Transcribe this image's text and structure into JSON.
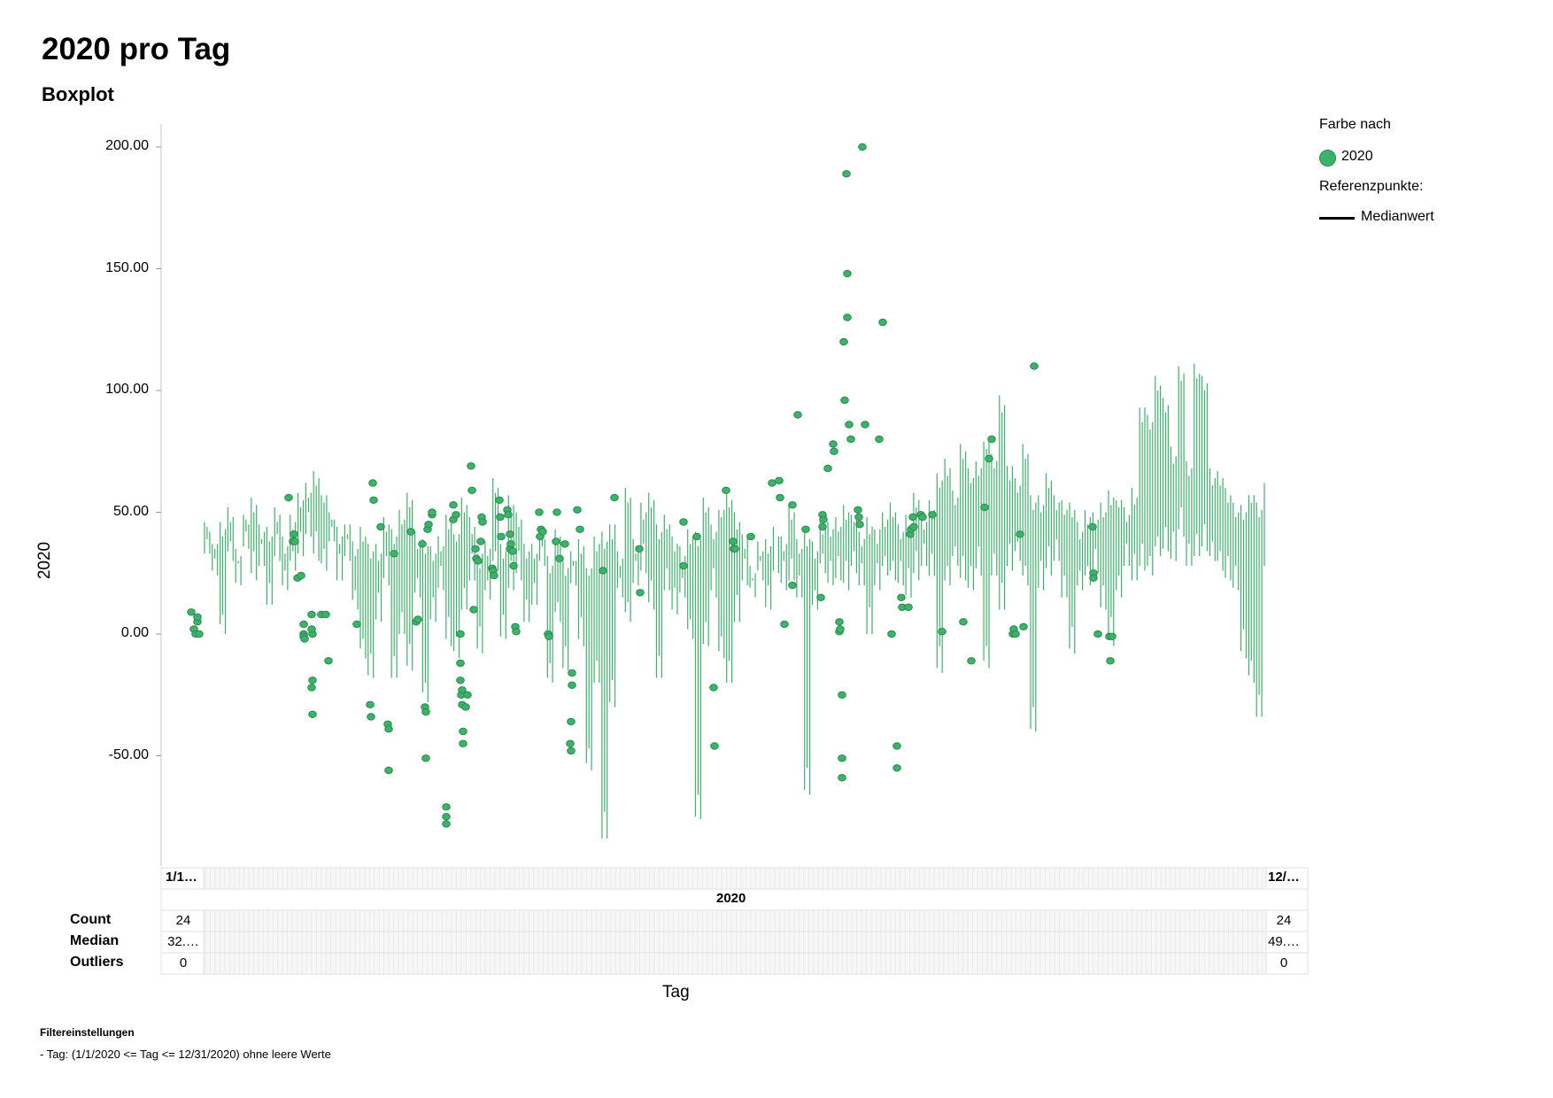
{
  "report": {
    "title": "2020 pro Tag",
    "subtitle": "Boxplot"
  },
  "legend": {
    "color_title": "Farbe nach",
    "series_label": "2020",
    "reference_title": "Referenzpunkte:",
    "median_label": "Medianwert"
  },
  "stats_table": {
    "header": "2020",
    "first_category": "1/1…",
    "last_category": "12/…",
    "rows": [
      {
        "label": "Count",
        "first": "24",
        "last": "24"
      },
      {
        "label": "Median",
        "first": "32.…",
        "last": "49.…"
      },
      {
        "label": "Outliers",
        "first": "0",
        "last": "0"
      }
    ]
  },
  "filters": {
    "title": "Filtereinstellungen",
    "line": "-  Tag: (1/1/2020 <= Tag <= 12/31/2020) ohne leere Werte"
  },
  "colors": {
    "series": "#3cb36a",
    "series_dark": "#2a8a4d",
    "axis": "#c8c8c8"
  },
  "chart_data": {
    "type": "boxplot",
    "title": "2020 pro Tag",
    "subtitle": "Boxplot",
    "xlabel": "Tag",
    "ylabel": "2020",
    "x_range": [
      "1/1/2020",
      "12/31/2020"
    ],
    "ylim": [
      -95,
      210
    ],
    "yticks": [
      -50,
      0,
      50,
      100,
      150,
      200
    ],
    "ytick_labels": [
      "-50.00",
      "0.00",
      "50.00",
      "100.00",
      "150.00",
      "200.00"
    ],
    "series_name": "2020",
    "daily_whiskers": [
      [
        0,
        33,
        46
      ],
      [
        0,
        24,
        40
      ],
      [
        0,
        0,
        48
      ],
      [
        0,
        30,
        52
      ],
      [
        0,
        20,
        38
      ],
      [
        0,
        35,
        50
      ],
      [
        0,
        22,
        56
      ],
      [
        0,
        28,
        48
      ],
      [
        0,
        12,
        45
      ],
      [
        0,
        30,
        52
      ],
      [
        0,
        18,
        42
      ],
      [
        0,
        26,
        50
      ],
      [
        0,
        32,
        58
      ],
      [
        0,
        40,
        64
      ],
      [
        0,
        30,
        68
      ],
      [
        0,
        26,
        60
      ],
      [
        0,
        38,
        52
      ],
      [
        0,
        22,
        44
      ],
      [
        0,
        30,
        48
      ],
      [
        0,
        10,
        40
      ],
      [
        0,
        -10,
        44
      ],
      [
        0,
        -18,
        40
      ],
      [
        0,
        5,
        38
      ],
      [
        0,
        20,
        48
      ],
      [
        0,
        -18,
        46
      ],
      [
        0,
        0,
        52
      ],
      [
        0,
        -15,
        58
      ],
      [
        0,
        15,
        44
      ],
      [
        0,
        -28,
        40
      ],
      [
        0,
        5,
        36
      ],
      [
        0,
        18,
        42
      ],
      [
        0,
        -5,
        50
      ],
      [
        0,
        -10,
        44
      ],
      [
        0,
        10,
        58
      ],
      [
        0,
        22,
        48
      ],
      [
        0,
        -8,
        36
      ],
      [
        0,
        14,
        40
      ],
      [
        0,
        26,
        64
      ],
      [
        0,
        -2,
        40
      ],
      [
        0,
        18,
        58
      ],
      [
        0,
        22,
        50
      ],
      [
        0,
        5,
        40
      ],
      [
        0,
        12,
        38
      ],
      [
        0,
        28,
        42
      ],
      [
        0,
        -20,
        34
      ],
      [
        0,
        5,
        44
      ],
      [
        0,
        -15,
        30
      ],
      [
        0,
        20,
        36
      ],
      [
        0,
        -5,
        40
      ],
      [
        0,
        -56,
        30
      ],
      [
        0,
        -20,
        42
      ],
      [
        0,
        -84,
        42
      ],
      [
        0,
        -30,
        48
      ],
      [
        0,
        15,
        36
      ],
      [
        0,
        5,
        60
      ],
      [
        0,
        20,
        42
      ],
      [
        0,
        25,
        55
      ],
      [
        0,
        10,
        58
      ],
      [
        0,
        -18,
        48
      ],
      [
        0,
        18,
        50
      ],
      [
        0,
        8,
        40
      ],
      [
        0,
        15,
        38
      ],
      [
        0,
        -2,
        44
      ],
      [
        0,
        -76,
        42
      ],
      [
        0,
        -5,
        58
      ],
      [
        0,
        15,
        46
      ],
      [
        0,
        -10,
        54
      ],
      [
        0,
        -20,
        60
      ],
      [
        0,
        5,
        50
      ],
      [
        0,
        20,
        44
      ],
      [
        0,
        15,
        30
      ],
      [
        0,
        22,
        38
      ],
      [
        0,
        10,
        42
      ],
      [
        0,
        25,
        45
      ],
      [
        0,
        18,
        40
      ],
      [
        0,
        22,
        56
      ],
      [
        0,
        15,
        40
      ],
      [
        0,
        -66,
        42
      ],
      [
        0,
        10,
        40
      ],
      [
        0,
        25,
        48
      ],
      [
        0,
        20,
        46
      ],
      [
        0,
        22,
        50
      ],
      [
        0,
        18,
        54
      ],
      [
        0,
        25,
        52
      ],
      [
        0,
        20,
        44
      ],
      [
        0,
        0,
        48
      ],
      [
        0,
        18,
        46
      ],
      [
        0,
        24,
        52
      ],
      [
        0,
        22,
        54
      ],
      [
        0,
        20,
        48
      ],
      [
        0,
        15,
        50
      ],
      [
        0,
        22,
        58
      ],
      [
        0,
        28,
        52
      ],
      [
        0,
        24,
        56
      ],
      [
        0,
        -16,
        66
      ],
      [
        0,
        20,
        74
      ],
      [
        0,
        28,
        60
      ],
      [
        0,
        22,
        78
      ],
      [
        0,
        18,
        70
      ],
      [
        0,
        24,
        72
      ],
      [
        0,
        -14,
        82
      ],
      [
        0,
        24,
        76
      ],
      [
        0,
        10,
        98
      ],
      [
        0,
        26,
        72
      ],
      [
        0,
        30,
        66
      ],
      [
        0,
        20,
        78
      ],
      [
        0,
        -40,
        60
      ],
      [
        0,
        18,
        58
      ],
      [
        0,
        24,
        66
      ],
      [
        0,
        30,
        60
      ],
      [
        0,
        15,
        56
      ],
      [
        0,
        -8,
        54
      ],
      [
        0,
        18,
        48
      ],
      [
        0,
        20,
        52
      ],
      [
        0,
        25,
        50
      ],
      [
        0,
        10,
        56
      ],
      [
        0,
        -5,
        60
      ],
      [
        0,
        15,
        58
      ],
      [
        0,
        28,
        54
      ],
      [
        0,
        22,
        60
      ],
      [
        0,
        26,
        96
      ],
      [
        0,
        24,
        92
      ],
      [
        0,
        32,
        106
      ],
      [
        0,
        34,
        100
      ],
      [
        0,
        30,
        78
      ],
      [
        0,
        40,
        110
      ],
      [
        0,
        28,
        74
      ],
      [
        0,
        32,
        112
      ],
      [
        0,
        34,
        106
      ],
      [
        0,
        30,
        70
      ],
      [
        0,
        26,
        68
      ],
      [
        0,
        22,
        60
      ],
      [
        0,
        18,
        56
      ],
      [
        0,
        -10,
        54
      ],
      [
        0,
        -20,
        60
      ],
      [
        0,
        -34,
        56
      ],
      [
        0,
        28,
        62
      ]
    ],
    "outliers": [
      [
        216,
        9
      ],
      [
        219,
        2
      ],
      [
        221,
        0
      ],
      [
        223,
        5
      ],
      [
        223,
        7
      ],
      [
        225,
        0
      ],
      [
        326,
        56
      ],
      [
        331,
        38
      ],
      [
        332,
        41
      ],
      [
        333,
        38
      ],
      [
        336,
        23
      ],
      [
        340,
        24
      ],
      [
        343,
        4
      ],
      [
        343,
        0
      ],
      [
        343,
        -1
      ],
      [
        344,
        -2
      ],
      [
        352,
        -22
      ],
      [
        353,
        -19
      ],
      [
        353,
        -33
      ],
      [
        352,
        8
      ],
      [
        353,
        0
      ],
      [
        352,
        2
      ],
      [
        363,
        8
      ],
      [
        368,
        8
      ],
      [
        371,
        -11
      ],
      [
        403,
        4
      ],
      [
        418,
        -29
      ],
      [
        419,
        -34
      ],
      [
        421,
        62
      ],
      [
        422,
        55
      ],
      [
        430,
        44
      ],
      [
        438,
        -37
      ],
      [
        439,
        -39
      ],
      [
        439,
        -56
      ],
      [
        445,
        33
      ],
      [
        464,
        42
      ],
      [
        470,
        5
      ],
      [
        472,
        6
      ],
      [
        477,
        37
      ],
      [
        480,
        -30
      ],
      [
        481,
        -32
      ],
      [
        481,
        -51
      ],
      [
        483,
        43
      ],
      [
        484,
        45
      ],
      [
        488,
        49
      ],
      [
        488,
        50
      ],
      [
        504,
        -71
      ],
      [
        504,
        -75
      ],
      [
        504,
        -78
      ],
      [
        512,
        53
      ],
      [
        512,
        47
      ],
      [
        515,
        49
      ],
      [
        520,
        0
      ],
      [
        520,
        -12
      ],
      [
        520,
        -19
      ],
      [
        521,
        -25
      ],
      [
        522,
        -23
      ],
      [
        522,
        -29
      ],
      [
        523,
        -40
      ],
      [
        523,
        -45
      ],
      [
        526,
        -30
      ],
      [
        528,
        -25
      ],
      [
        532,
        69
      ],
      [
        533,
        59
      ],
      [
        535,
        10
      ],
      [
        537,
        35
      ],
      [
        538,
        31
      ],
      [
        540,
        30
      ],
      [
        543,
        38
      ],
      [
        544,
        48
      ],
      [
        545,
        46
      ],
      [
        556,
        27
      ],
      [
        557,
        26
      ],
      [
        558,
        24
      ],
      [
        564,
        55
      ],
      [
        565,
        48
      ],
      [
        566,
        40
      ],
      [
        573,
        51
      ],
      [
        574,
        49
      ],
      [
        576,
        41
      ],
      [
        576,
        35
      ],
      [
        577,
        37
      ],
      [
        579,
        34
      ],
      [
        580,
        28
      ],
      [
        582,
        3
      ],
      [
        583,
        1
      ],
      [
        609,
        50
      ],
      [
        610,
        40
      ],
      [
        611,
        43
      ],
      [
        613,
        42
      ],
      [
        619,
        0
      ],
      [
        620,
        -1
      ],
      [
        628,
        38
      ],
      [
        629,
        50
      ],
      [
        632,
        31
      ],
      [
        638,
        37
      ],
      [
        644,
        -45
      ],
      [
        645,
        -48
      ],
      [
        645,
        -36
      ],
      [
        646,
        -21
      ],
      [
        646,
        -16
      ],
      [
        652,
        51
      ],
      [
        655,
        43
      ],
      [
        681,
        26
      ],
      [
        694,
        56
      ],
      [
        722,
        35
      ],
      [
        723,
        17
      ],
      [
        772,
        46
      ],
      [
        772,
        28
      ],
      [
        787,
        40
      ],
      [
        806,
        -22
      ],
      [
        807,
        -46
      ],
      [
        820,
        59
      ],
      [
        828,
        38
      ],
      [
        829,
        35
      ],
      [
        830,
        35
      ],
      [
        848,
        40
      ],
      [
        872,
        62
      ],
      [
        880,
        63
      ],
      [
        881,
        56
      ],
      [
        886,
        4
      ],
      [
        895,
        53
      ],
      [
        895,
        20
      ],
      [
        901,
        90
      ],
      [
        910,
        43
      ],
      [
        927,
        15
      ],
      [
        929,
        49
      ],
      [
        929,
        44
      ],
      [
        930,
        47
      ],
      [
        935,
        68
      ],
      [
        941,
        78
      ],
      [
        942,
        75
      ],
      [
        948,
        5
      ],
      [
        948,
        1
      ],
      [
        949,
        2
      ],
      [
        951,
        -25
      ],
      [
        951,
        -51
      ],
      [
        951,
        -59
      ],
      [
        953,
        120
      ],
      [
        954,
        96
      ],
      [
        956,
        189
      ],
      [
        957,
        148
      ],
      [
        957,
        130
      ],
      [
        959,
        86
      ],
      [
        961,
        80
      ],
      [
        969,
        51
      ],
      [
        970,
        48
      ],
      [
        971,
        45
      ],
      [
        974,
        200
      ],
      [
        977,
        86
      ],
      [
        993,
        80
      ],
      [
        997,
        128
      ],
      [
        1007,
        0
      ],
      [
        1013,
        -46
      ],
      [
        1013,
        -55
      ],
      [
        1018,
        15
      ],
      [
        1019,
        11
      ],
      [
        1026,
        11
      ],
      [
        1028,
        41
      ],
      [
        1029,
        43
      ],
      [
        1031,
        48
      ],
      [
        1032,
        44
      ],
      [
        1040,
        49
      ],
      [
        1042,
        48
      ],
      [
        1053,
        49
      ],
      [
        1064,
        1
      ],
      [
        1088,
        5
      ],
      [
        1097,
        -11
      ],
      [
        1112,
        52
      ],
      [
        1117,
        72
      ],
      [
        1120,
        80
      ],
      [
        1144,
        0
      ],
      [
        1145,
        2
      ],
      [
        1147,
        0
      ],
      [
        1152,
        41
      ],
      [
        1156,
        3
      ],
      [
        1168,
        110
      ],
      [
        1234,
        44
      ],
      [
        1235,
        25
      ],
      [
        1235,
        23
      ],
      [
        1240,
        0
      ],
      [
        1253,
        -1
      ],
      [
        1254,
        -11
      ],
      [
        1256,
        -1
      ]
    ],
    "legend_position": "top-right",
    "grid": false,
    "reference_line": "Medianwert"
  }
}
